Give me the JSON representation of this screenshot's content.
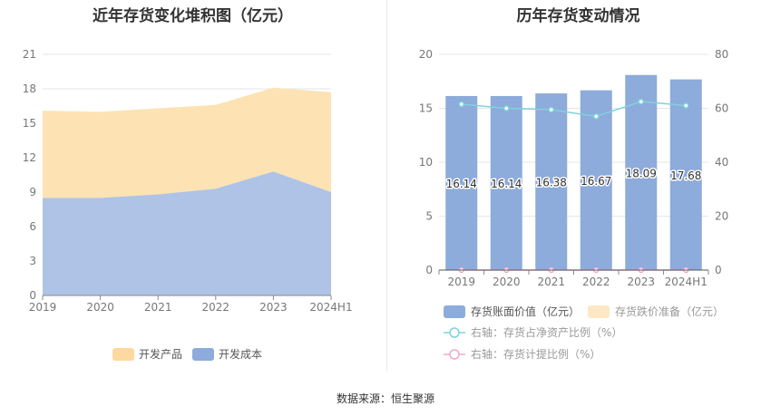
{
  "left_title": "近年存货变化堆积图（亿元）",
  "right_title": "历年存货变动情况",
  "source": "数据来源：恒生聚源",
  "chart_data": [
    {
      "type": "area",
      "title": "近年存货变化堆积图（亿元）",
      "x": [
        "2019",
        "2020",
        "2021",
        "2022",
        "2023",
        "2024H1"
      ],
      "ylim": [
        0,
        21
      ],
      "yticks": [
        0,
        3,
        6,
        9,
        12,
        15,
        18,
        21
      ],
      "stacked": true,
      "grid": true,
      "legend_position": "bottom",
      "series": [
        {
          "name": "开发成本",
          "values": [
            8.5,
            8.5,
            8.8,
            9.3,
            10.8,
            9.0
          ],
          "color": "#aec3e6"
        },
        {
          "name": "开发产品",
          "values": [
            7.6,
            7.5,
            7.5,
            7.3,
            7.3,
            8.7
          ],
          "color": "#fde2b3"
        }
      ],
      "legend_order": [
        "开发产品",
        "开发成本"
      ]
    },
    {
      "type": "bar",
      "title": "历年存货变动情况",
      "categories": [
        "2019",
        "2020",
        "2021",
        "2022",
        "2023",
        "2024H1"
      ],
      "ylim": [
        0,
        20
      ],
      "yticks": [
        0,
        5,
        10,
        15,
        20
      ],
      "y2lim": [
        0,
        80
      ],
      "y2ticks": [
        0,
        20,
        40,
        60,
        80
      ],
      "grid": true,
      "legend_position": "bottom",
      "series": [
        {
          "name": "存货账面价值（亿元）",
          "type": "bar",
          "axis": "left",
          "values": [
            16.14,
            16.14,
            16.38,
            16.67,
            18.09,
            17.68
          ],
          "labels": [
            "16.14",
            "16.14",
            "16.38",
            "16.67",
            "18.09",
            "17.68"
          ],
          "color": "#8dabdb"
        },
        {
          "name": "存货跌价准备（亿元）",
          "type": "bar",
          "axis": "left",
          "values": [
            0,
            0,
            0,
            0,
            0,
            0
          ],
          "color": "#fde7c4"
        },
        {
          "name": "右轴：存货占净资产比例（%）",
          "type": "line",
          "axis": "right",
          "values": [
            61.5,
            60.0,
            59.5,
            57.0,
            62.5,
            61.0
          ],
          "color": "#7fd3dc"
        },
        {
          "name": "右轴：存货计提比例（%）",
          "type": "line",
          "axis": "right",
          "values": [
            0,
            0,
            0,
            0,
            0,
            0
          ],
          "color": "#f0a8d2"
        }
      ]
    }
  ]
}
